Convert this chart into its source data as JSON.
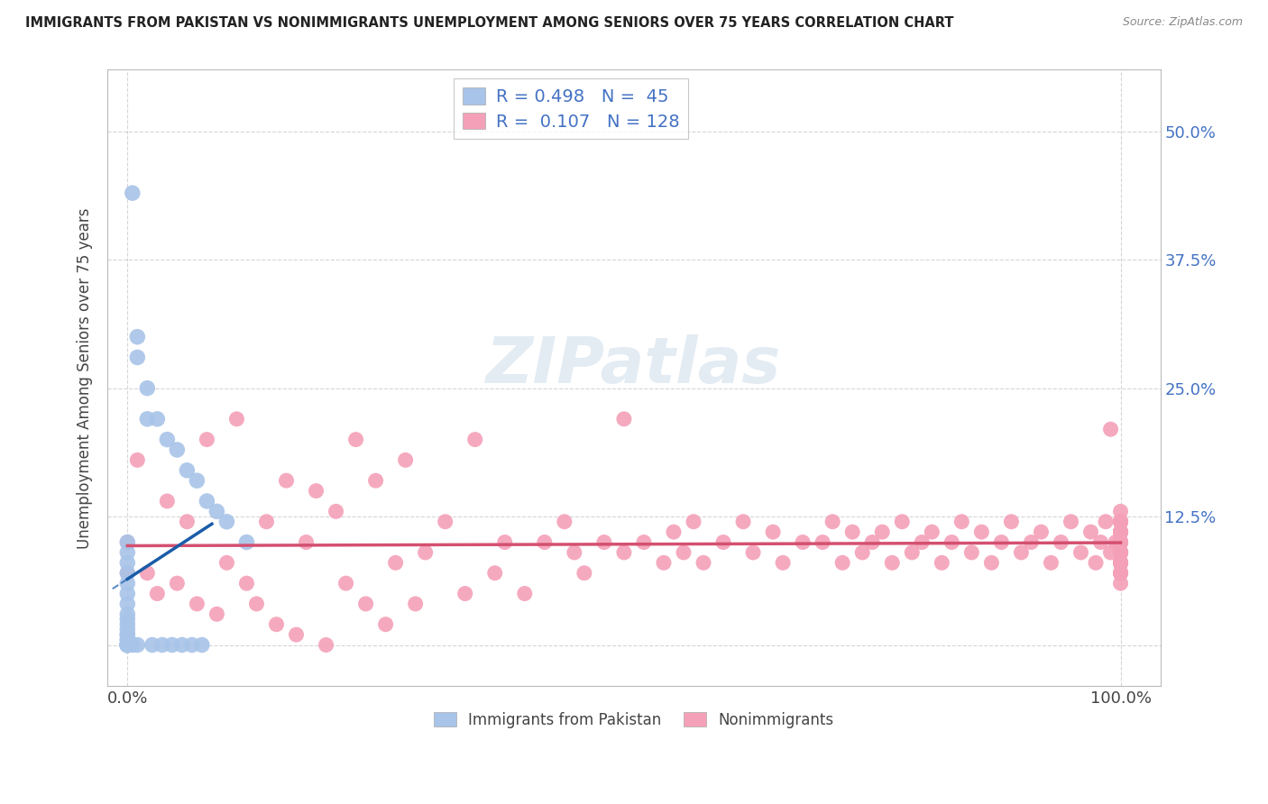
{
  "title": "IMMIGRANTS FROM PAKISTAN VS NONIMMIGRANTS UNEMPLOYMENT AMONG SENIORS OVER 75 YEARS CORRELATION CHART",
  "source": "Source: ZipAtlas.com",
  "ylabel": "Unemployment Among Seniors over 75 years",
  "ytick_vals": [
    0.0,
    0.125,
    0.25,
    0.375,
    0.5
  ],
  "ytick_labels_right": [
    "",
    "12.5%",
    "25.0%",
    "37.5%",
    "50.0%"
  ],
  "legend_r_blue": "0.498",
  "legend_n_blue": "45",
  "legend_r_pink": "0.107",
  "legend_n_pink": "128",
  "legend_label_blue": "Immigrants from Pakistan",
  "legend_label_pink": "Nonimmigrants",
  "blue_scatter_color": "#a8c4e8",
  "blue_line_color": "#1a5ca8",
  "pink_scatter_color": "#f4a0b8",
  "pink_line_color": "#d45070",
  "watermark_text": "ZIPatlas",
  "background_color": "#ffffff",
  "grid_color": "#cccccc",
  "blue_x": [
    0.0,
    0.0,
    0.0,
    0.0,
    0.0,
    0.0,
    0.0,
    0.0,
    0.0,
    0.0,
    0.0,
    0.0,
    0.0,
    0.0,
    0.0,
    0.0,
    0.0,
    0.0,
    0.0,
    0.0,
    0.0,
    0.0,
    0.0,
    0.005,
    0.005,
    0.01,
    0.01,
    0.01,
    0.02,
    0.02,
    0.025,
    0.03,
    0.035,
    0.04,
    0.045,
    0.05,
    0.055,
    0.06,
    0.065,
    0.07,
    0.075,
    0.08,
    0.09,
    0.1,
    0.12
  ],
  "blue_y": [
    0.0,
    0.0,
    0.0,
    0.0,
    0.0,
    0.0,
    0.0,
    0.0,
    0.005,
    0.005,
    0.01,
    0.01,
    0.015,
    0.02,
    0.025,
    0.03,
    0.04,
    0.05,
    0.06,
    0.07,
    0.08,
    0.09,
    0.1,
    0.44,
    0.0,
    0.3,
    0.28,
    0.0,
    0.25,
    0.22,
    0.0,
    0.22,
    0.0,
    0.2,
    0.0,
    0.19,
    0.0,
    0.17,
    0.0,
    0.16,
    0.0,
    0.14,
    0.13,
    0.12,
    0.1
  ],
  "pink_x": [
    0.0,
    0.0,
    0.01,
    0.02,
    0.03,
    0.04,
    0.05,
    0.06,
    0.07,
    0.08,
    0.09,
    0.1,
    0.11,
    0.12,
    0.13,
    0.14,
    0.15,
    0.16,
    0.17,
    0.18,
    0.19,
    0.2,
    0.21,
    0.22,
    0.23,
    0.24,
    0.25,
    0.26,
    0.27,
    0.28,
    0.29,
    0.3,
    0.32,
    0.34,
    0.35,
    0.37,
    0.38,
    0.4,
    0.42,
    0.44,
    0.45,
    0.46,
    0.48,
    0.5,
    0.5,
    0.52,
    0.54,
    0.55,
    0.56,
    0.57,
    0.58,
    0.6,
    0.62,
    0.63,
    0.65,
    0.66,
    0.68,
    0.7,
    0.71,
    0.72,
    0.73,
    0.74,
    0.75,
    0.76,
    0.77,
    0.78,
    0.79,
    0.8,
    0.81,
    0.82,
    0.83,
    0.84,
    0.85,
    0.86,
    0.87,
    0.88,
    0.89,
    0.9,
    0.91,
    0.92,
    0.93,
    0.94,
    0.95,
    0.96,
    0.97,
    0.975,
    0.98,
    0.985,
    0.99,
    0.99,
    0.995,
    1.0,
    1.0,
    1.0,
    1.0,
    1.0,
    1.0,
    1.0,
    1.0,
    1.0,
    1.0,
    1.0,
    1.0,
    1.0,
    1.0,
    1.0,
    1.0,
    1.0,
    1.0,
    1.0,
    1.0,
    1.0,
    1.0,
    1.0,
    1.0,
    1.0,
    1.0,
    1.0,
    1.0,
    1.0,
    1.0,
    1.0,
    1.0,
    1.0,
    1.0,
    1.0,
    1.0,
    1.0
  ],
  "pink_y": [
    0.07,
    0.1,
    0.18,
    0.07,
    0.05,
    0.14,
    0.06,
    0.12,
    0.04,
    0.2,
    0.03,
    0.08,
    0.22,
    0.06,
    0.04,
    0.12,
    0.02,
    0.16,
    0.01,
    0.1,
    0.15,
    0.0,
    0.13,
    0.06,
    0.2,
    0.04,
    0.16,
    0.02,
    0.08,
    0.18,
    0.04,
    0.09,
    0.12,
    0.05,
    0.2,
    0.07,
    0.1,
    0.05,
    0.1,
    0.12,
    0.09,
    0.07,
    0.1,
    0.22,
    0.09,
    0.1,
    0.08,
    0.11,
    0.09,
    0.12,
    0.08,
    0.1,
    0.12,
    0.09,
    0.11,
    0.08,
    0.1,
    0.1,
    0.12,
    0.08,
    0.11,
    0.09,
    0.1,
    0.11,
    0.08,
    0.12,
    0.09,
    0.1,
    0.11,
    0.08,
    0.1,
    0.12,
    0.09,
    0.11,
    0.08,
    0.1,
    0.12,
    0.09,
    0.1,
    0.11,
    0.08,
    0.1,
    0.12,
    0.09,
    0.11,
    0.08,
    0.1,
    0.12,
    0.21,
    0.09,
    0.1,
    0.11,
    0.08,
    0.09,
    0.12,
    0.1,
    0.09,
    0.11,
    0.08,
    0.1,
    0.09,
    0.12,
    0.07,
    0.11,
    0.08,
    0.1,
    0.09,
    0.12,
    0.08,
    0.11,
    0.07,
    0.1,
    0.09,
    0.12,
    0.08,
    0.13,
    0.07,
    0.11,
    0.06,
    0.09,
    0.1,
    0.08,
    0.12,
    0.09,
    0.11,
    0.07,
    0.1,
    0.08
  ]
}
